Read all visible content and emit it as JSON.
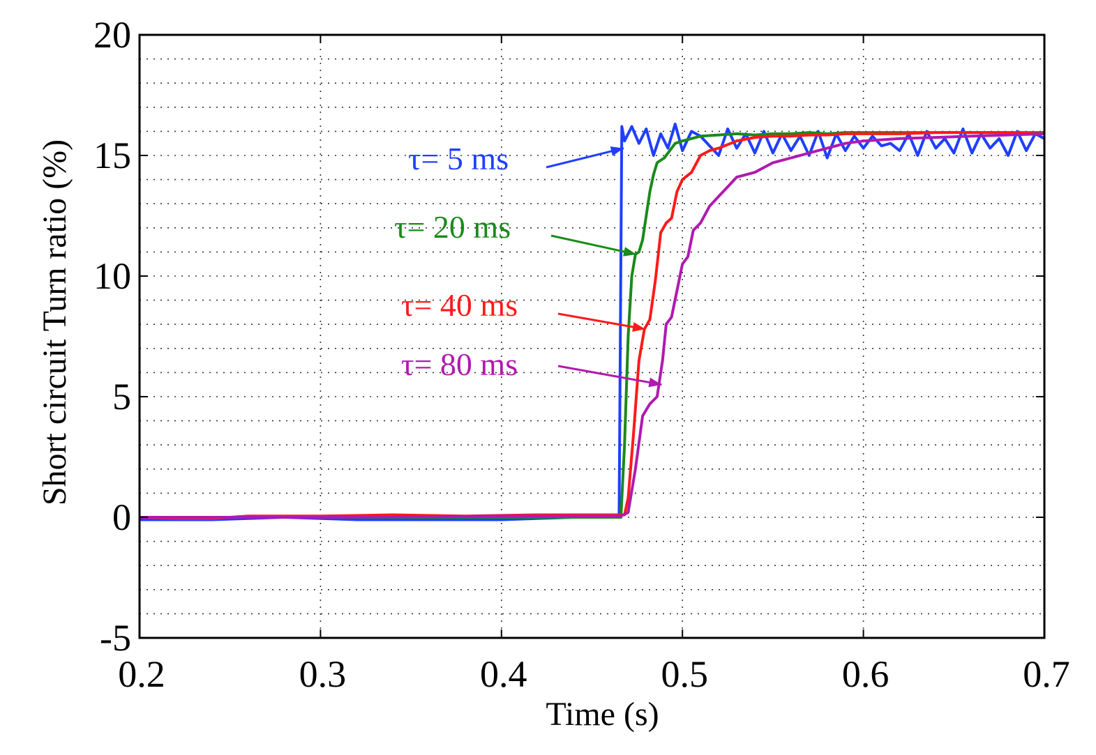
{
  "chart_data": {
    "type": "line",
    "title": "",
    "xlabel": "Time (s)",
    "ylabel": "Short circuit Turn ratio (%)",
    "xlim": [
      0.2,
      0.7
    ],
    "ylim": [
      -5,
      20
    ],
    "grid": true,
    "x_ticks": [
      0.2,
      0.3,
      0.4,
      0.5,
      0.6,
      0.7
    ],
    "x_tick_labels": [
      "0.2",
      "0.3",
      "0.4",
      "0.5",
      "0.6",
      "0.7"
    ],
    "y_ticks": [
      -5,
      0,
      5,
      10,
      15,
      20
    ],
    "y_tick_labels": [
      "-5",
      "0",
      "5",
      "10",
      "15",
      "20"
    ],
    "series": [
      {
        "name": "τ= 5 ms",
        "color": "#1f3fff",
        "x": [
          0.2,
          0.24,
          0.28,
          0.32,
          0.36,
          0.4,
          0.44,
          0.465,
          0.4665,
          0.468,
          0.472,
          0.476,
          0.48,
          0.484,
          0.488,
          0.492,
          0.496,
          0.5,
          0.505,
          0.51,
          0.515,
          0.52,
          0.525,
          0.53,
          0.535,
          0.54,
          0.545,
          0.55,
          0.555,
          0.56,
          0.565,
          0.57,
          0.575,
          0.58,
          0.585,
          0.59,
          0.595,
          0.6,
          0.605,
          0.61,
          0.615,
          0.62,
          0.625,
          0.63,
          0.635,
          0.64,
          0.645,
          0.65,
          0.655,
          0.66,
          0.665,
          0.67,
          0.675,
          0.68,
          0.685,
          0.69,
          0.695,
          0.7
        ],
        "values": [
          -0.1,
          -0.1,
          0.0,
          -0.1,
          -0.1,
          -0.1,
          0.0,
          0.0,
          16.2,
          15.6,
          16.2,
          15.5,
          16.1,
          15.0,
          15.9,
          15.3,
          16.3,
          15.2,
          16.0,
          15.8,
          15.4,
          15.0,
          16.1,
          15.3,
          15.9,
          15.1,
          16.0,
          15.1,
          15.9,
          15.2,
          15.8,
          15.0,
          16.0,
          14.9,
          15.9,
          15.2,
          15.8,
          15.3,
          15.8,
          15.4,
          15.5,
          15.2,
          15.9,
          15.0,
          16.0,
          15.3,
          15.7,
          15.1,
          16.1,
          15.1,
          15.9,
          15.3,
          15.7,
          15.0,
          16.0,
          15.2,
          15.9,
          15.7
        ]
      },
      {
        "name": "τ= 20 ms",
        "color": "#1a8a1a",
        "x": [
          0.2,
          0.3,
          0.4,
          0.466,
          0.468,
          0.47,
          0.472,
          0.474,
          0.476,
          0.478,
          0.48,
          0.482,
          0.484,
          0.486,
          0.488,
          0.49,
          0.493,
          0.496,
          0.5,
          0.505,
          0.51,
          0.52,
          0.53,
          0.54,
          0.55,
          0.56,
          0.57,
          0.58,
          0.59,
          0.6,
          0.62,
          0.64,
          0.66,
          0.68,
          0.7
        ],
        "values": [
          0.0,
          0.0,
          0.0,
          0.0,
          3.0,
          7.5,
          10.0,
          10.9,
          11.0,
          11.5,
          12.5,
          13.5,
          14.2,
          14.7,
          14.8,
          14.9,
          15.2,
          15.5,
          15.6,
          15.7,
          15.8,
          15.85,
          15.9,
          15.85,
          15.9,
          15.9,
          15.95,
          15.9,
          15.95,
          15.95,
          15.95,
          15.95,
          15.95,
          15.95,
          15.95
        ]
      },
      {
        "name": "τ= 40 ms",
        "color": "#ff1a1a",
        "x": [
          0.2,
          0.22,
          0.24,
          0.26,
          0.3,
          0.34,
          0.38,
          0.42,
          0.46,
          0.468,
          0.47,
          0.473,
          0.476,
          0.479,
          0.482,
          0.485,
          0.488,
          0.491,
          0.494,
          0.497,
          0.5,
          0.505,
          0.51,
          0.515,
          0.52,
          0.53,
          0.54,
          0.55,
          0.56,
          0.57,
          0.58,
          0.59,
          0.6,
          0.62,
          0.64,
          0.66,
          0.68,
          0.7
        ],
        "values": [
          0.0,
          -0.05,
          -0.05,
          0.05,
          0.05,
          0.1,
          0.05,
          0.1,
          0.1,
          0.1,
          0.8,
          3.5,
          6.5,
          7.8,
          8.2,
          9.8,
          11.8,
          12.2,
          12.4,
          13.5,
          14.0,
          14.3,
          15.0,
          15.2,
          15.3,
          15.6,
          15.75,
          15.8,
          15.8,
          15.85,
          15.85,
          15.9,
          15.9,
          15.9,
          15.95,
          15.95,
          15.95,
          15.9
        ]
      },
      {
        "name": "τ= 80 ms",
        "color": "#b01ab0",
        "x": [
          0.2,
          0.3,
          0.4,
          0.466,
          0.47,
          0.474,
          0.478,
          0.482,
          0.486,
          0.489,
          0.491,
          0.494,
          0.497,
          0.5,
          0.503,
          0.506,
          0.51,
          0.515,
          0.52,
          0.525,
          0.53,
          0.54,
          0.55,
          0.56,
          0.57,
          0.58,
          0.59,
          0.6,
          0.62,
          0.64,
          0.66,
          0.68,
          0.7
        ],
        "values": [
          0.0,
          0.0,
          0.05,
          0.05,
          0.2,
          2.0,
          4.2,
          4.7,
          5.0,
          6.5,
          8.0,
          8.3,
          9.4,
          10.5,
          10.8,
          11.9,
          12.2,
          12.9,
          13.3,
          13.7,
          14.1,
          14.3,
          14.7,
          14.9,
          15.1,
          15.3,
          15.5,
          15.6,
          15.7,
          15.75,
          15.8,
          15.85,
          15.9
        ]
      }
    ],
    "annotations": [
      {
        "label": "τ= 5 ms",
        "series": 0,
        "target_x": 0.4675,
        "target_y": 15.3
      },
      {
        "label": "τ= 20 ms",
        "series": 1,
        "target_x": 0.4745,
        "target_y": 10.9
      },
      {
        "label": "τ= 40 ms",
        "series": 2,
        "target_x": 0.4795,
        "target_y": 7.8
      },
      {
        "label": "τ= 80 ms",
        "series": 3,
        "target_x": 0.4885,
        "target_y": 5.5
      }
    ]
  }
}
